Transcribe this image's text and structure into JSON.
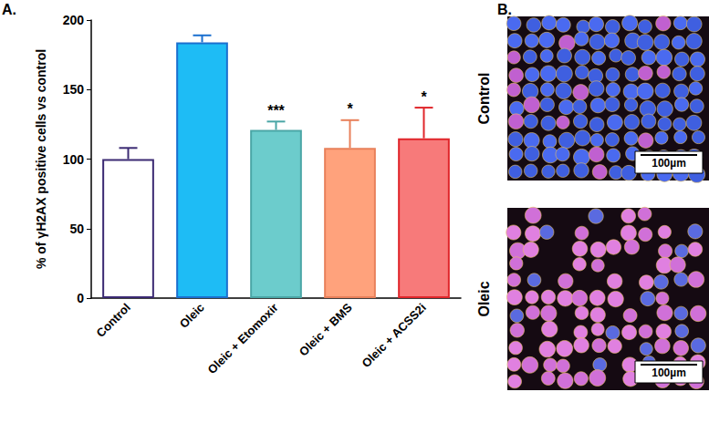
{
  "chart_data": {
    "type": "bar",
    "panel_label": "A.",
    "y_label": "% of γH2AX positive cells vs control",
    "categories": [
      "Control",
      "Oleic",
      "Oleic + Etomoxir",
      "Oleic + BMS",
      "Oleic + ACSS2i"
    ],
    "values": [
      100,
      184,
      121,
      108,
      115
    ],
    "errors": [
      8,
      5,
      6,
      20,
      22
    ],
    "significance": [
      null,
      null,
      "***",
      "*",
      "*"
    ],
    "colors": [
      "#ffffff",
      "#1ebcf5",
      "#6ccccc",
      "#ffa27c",
      "#f77a7a"
    ],
    "ylim": [
      0,
      200
    ],
    "yticks": [
      0,
      50,
      100,
      150,
      200
    ],
    "grid": false,
    "panel_b": {
      "label": "B.",
      "images": [
        {
          "label": "Control",
          "scale_bar": "100µm"
        },
        {
          "label": "Oleic",
          "scale_bar": "100µm"
        }
      ]
    }
  }
}
